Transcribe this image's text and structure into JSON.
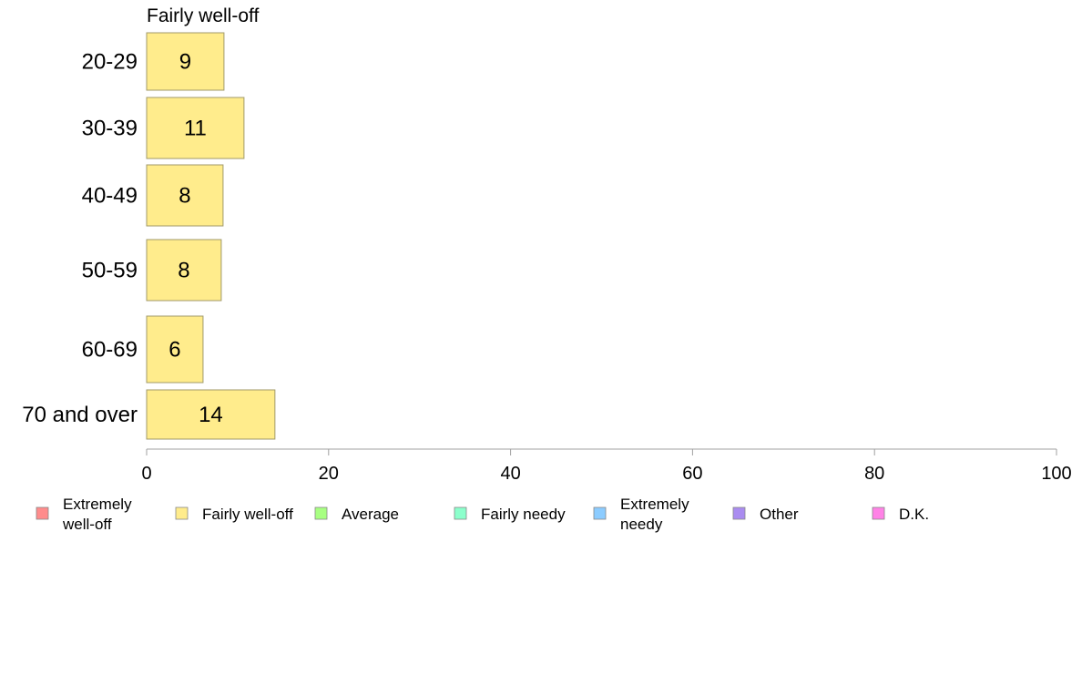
{
  "chart_data": {
    "type": "bar",
    "orientation": "horizontal",
    "title": "Fairly well-off",
    "categories": [
      "20-29",
      "30-39",
      "40-49",
      "50-59",
      "60-69",
      "70 and over"
    ],
    "series": [
      {
        "name": "Fairly well-off",
        "values": [
          8.5,
          10.7,
          8.4,
          8.2,
          6.2,
          14.1
        ],
        "labels": [
          "9",
          "11",
          "8",
          "8",
          "6",
          "14"
        ]
      }
    ],
    "xlim": [
      0,
      100
    ],
    "xticks": [
      "0",
      "20",
      "40",
      "60",
      "80",
      "100"
    ],
    "grid": false,
    "legend_position": "bottom",
    "legend": [
      {
        "label": [
          "Extremely",
          "well-off"
        ],
        "color": "#ff8c8c"
      },
      {
        "label": [
          "Fairly well-off"
        ],
        "color": "#ffec8c"
      },
      {
        "label": [
          "Average"
        ],
        "color": "#a8ff82"
      },
      {
        "label": [
          "Fairly needy"
        ],
        "color": "#8cffcc"
      },
      {
        "label": [
          "Extremely",
          "needy"
        ],
        "color": "#8cccff"
      },
      {
        "label": [
          "Other"
        ],
        "color": "#aa8cf0"
      },
      {
        "label": [
          "D.K."
        ],
        "color": "#ff82e6"
      }
    ],
    "bar_color": "#ffec8c",
    "bar_stroke": "#a09a6a",
    "axis_color": "#a0a0a0"
  }
}
